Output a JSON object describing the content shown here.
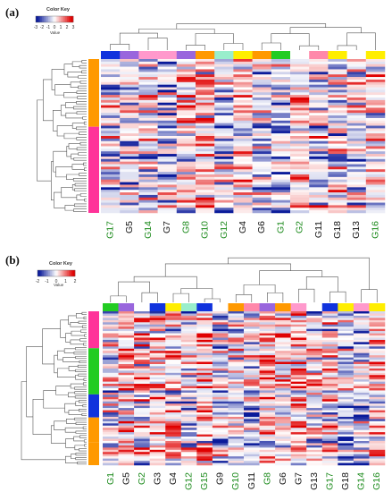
{
  "colors": {
    "low": "#0a1a9a",
    "mid": "#ffffff",
    "high": "#e00000",
    "green_label": "#1b8a1b",
    "black_label": "#111111",
    "orange": "#ff9900",
    "pink": "#ff3399",
    "green": "#22cc22",
    "blue": "#1133dd"
  },
  "chart_data": [
    {
      "panel": "(a)",
      "type": "heatmap",
      "color_key": {
        "title": "Color Key",
        "value_label": "Value",
        "ticks": [
          "-3",
          "-2",
          "-1",
          "0",
          "1",
          "2",
          "3"
        ],
        "range": [
          -3,
          3
        ]
      },
      "columns": [
        {
          "label": "G17",
          "label_color": "green",
          "group_color": "#1133dd"
        },
        {
          "label": "G5",
          "label_color": "black",
          "group_color": "#9966dd"
        },
        {
          "label": "G14",
          "label_color": "green",
          "group_color": "#ff99cc"
        },
        {
          "label": "G7",
          "label_color": "black",
          "group_color": "#ff99cc"
        },
        {
          "label": "G8",
          "label_color": "green",
          "group_color": "#9966dd"
        },
        {
          "label": "G10",
          "label_color": "green",
          "group_color": "#ff9900"
        },
        {
          "label": "G12",
          "label_color": "green",
          "group_color": "#99eecc"
        },
        {
          "label": "G4",
          "label_color": "black",
          "group_color": "#ffee00"
        },
        {
          "label": "G6",
          "label_color": "black",
          "group_color": "#ff9900"
        },
        {
          "label": "G1",
          "label_color": "green",
          "group_color": "#22cc22"
        },
        {
          "label": "G2",
          "label_color": "green",
          "group_color": "#ffffff"
        },
        {
          "label": "G11",
          "label_color": "black",
          "group_color": "#ff88aa"
        },
        {
          "label": "G18",
          "label_color": "black",
          "group_color": "#ffee00"
        },
        {
          "label": "G13",
          "label_color": "black",
          "group_color": "#ffffff"
        },
        {
          "label": "G16",
          "label_color": "green",
          "group_color": "#ffee00"
        }
      ],
      "row_groups": [
        {
          "color": "#ff9900",
          "fraction": 0.44
        },
        {
          "color": "#ff3399",
          "fraction": 0.56
        }
      ],
      "row_count": 60
    },
    {
      "panel": "(b)",
      "type": "heatmap",
      "color_key": {
        "title": "Color Key",
        "value_label": "Value",
        "ticks": [
          "-2",
          "-1",
          "0",
          "1",
          "2"
        ],
        "range": [
          -2.5,
          2.5
        ]
      },
      "columns": [
        {
          "label": "G1",
          "label_color": "green",
          "group_color": "#22cc22"
        },
        {
          "label": "G5",
          "label_color": "black",
          "group_color": "#9966dd"
        },
        {
          "label": "G2",
          "label_color": "green",
          "group_color": "#ffffff"
        },
        {
          "label": "G3",
          "label_color": "black",
          "group_color": "#1133dd"
        },
        {
          "label": "G4",
          "label_color": "black",
          "group_color": "#ffee00"
        },
        {
          "label": "G12",
          "label_color": "green",
          "group_color": "#99eecc"
        },
        {
          "label": "G15",
          "label_color": "green",
          "group_color": "#1133dd"
        },
        {
          "label": "G9",
          "label_color": "black",
          "group_color": "#ffffff"
        },
        {
          "label": "G10",
          "label_color": "green",
          "group_color": "#ff9900"
        },
        {
          "label": "G11",
          "label_color": "black",
          "group_color": "#ff88aa"
        },
        {
          "label": "G8",
          "label_color": "green",
          "group_color": "#9966dd"
        },
        {
          "label": "G6",
          "label_color": "black",
          "group_color": "#ff9900"
        },
        {
          "label": "G7",
          "label_color": "black",
          "group_color": "#ff99cc"
        },
        {
          "label": "G13",
          "label_color": "black",
          "group_color": "#ffffff"
        },
        {
          "label": "G17",
          "label_color": "green",
          "group_color": "#1133dd"
        },
        {
          "label": "G18",
          "label_color": "black",
          "group_color": "#ffee00"
        },
        {
          "label": "G14",
          "label_color": "green",
          "group_color": "#ff99cc"
        },
        {
          "label": "G16",
          "label_color": "green",
          "group_color": "#ffee00"
        }
      ],
      "row_groups": [
        {
          "color": "#ff3399",
          "fraction": 0.24
        },
        {
          "color": "#22cc22",
          "fraction": 0.3
        },
        {
          "color": "#1133dd",
          "fraction": 0.15
        },
        {
          "color": "#ff9900",
          "fraction": 0.16
        },
        {
          "color": "#ff9900",
          "fraction": 0.15
        }
      ],
      "row_count": 70
    }
  ]
}
